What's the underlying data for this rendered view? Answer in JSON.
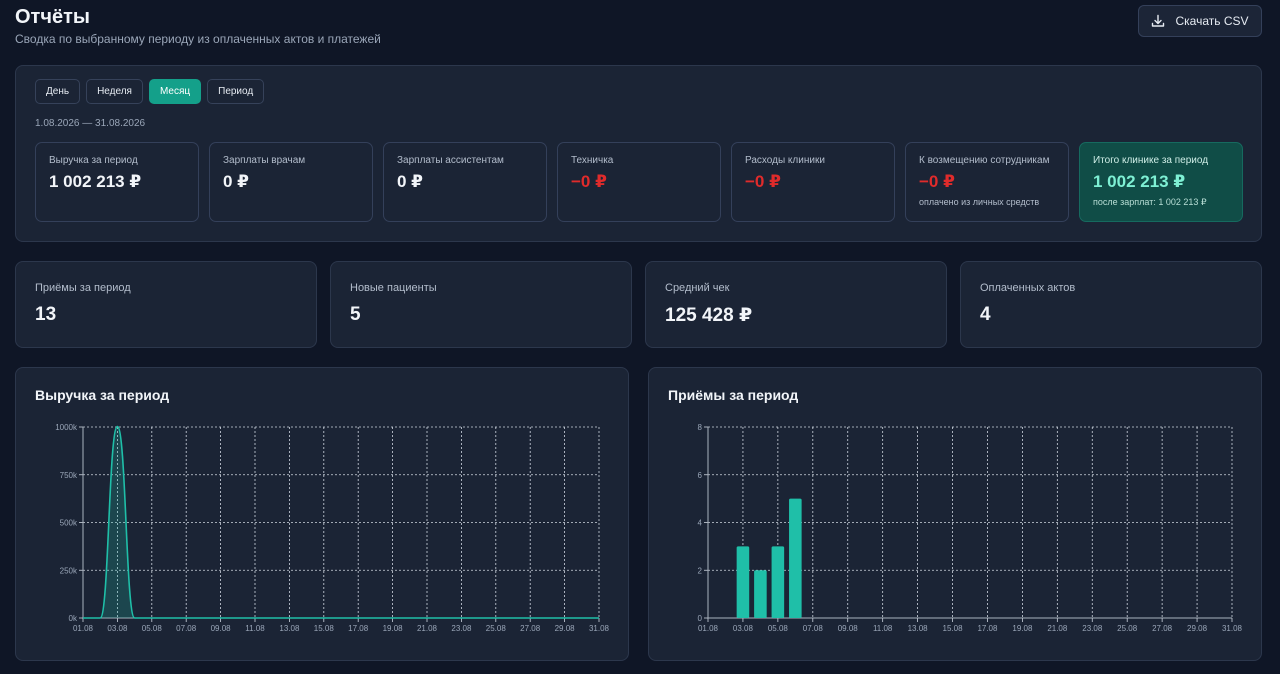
{
  "header": {
    "title": "Отчёты",
    "subtitle": "Сводка по выбранному периоду из оплаченных актов и платежей",
    "csv_label": "Скачать CSV"
  },
  "period_tabs": [
    {
      "label": "День",
      "active": false
    },
    {
      "label": "Неделя",
      "active": false
    },
    {
      "label": "Месяц",
      "active": true
    },
    {
      "label": "Период",
      "active": false
    }
  ],
  "date_range": "1.08.2026 — 31.08.2026",
  "summary": {
    "revenue": {
      "label": "Выручка за период",
      "value": "1 002 213 ₽"
    },
    "doctor_salaries": {
      "label": "Зарплаты врачам",
      "value": "0 ₽"
    },
    "assistant_salaries": {
      "label": "Зарплаты ассистентам",
      "value": "0 ₽"
    },
    "cleaner": {
      "label": "Техничка",
      "value": "−0 ₽"
    },
    "clinic_expenses": {
      "label": "Расходы клиники",
      "value": "−0 ₽"
    },
    "reimbursement": {
      "label": "К возмещению сотрудникам",
      "value": "−0 ₽",
      "note": "оплачено из личных средств"
    },
    "clinic_total": {
      "label": "Итого клинике за период",
      "value": "1 002 213 ₽",
      "note": "после зарплат: 1 002 213 ₽"
    }
  },
  "stats": {
    "appointments": {
      "label": "Приёмы за период",
      "value": "13"
    },
    "new_patients": {
      "label": "Новые пациенты",
      "value": "5"
    },
    "avg_check": {
      "label": "Средний чек",
      "value": "125 428 ₽"
    },
    "paid_acts": {
      "label": "Оплаченных актов",
      "value": "4"
    }
  },
  "colors": {
    "accent": "#14a08a",
    "series": "#1fbfa8",
    "negative": "#e02b2b",
    "total_card": "#104d47"
  },
  "chart_data": [
    {
      "type": "line",
      "title": "Выручка за период",
      "x": [
        "01.08",
        "02.08",
        "03.08",
        "04.08",
        "05.08",
        "06.08",
        "07.08",
        "08.08",
        "09.08",
        "10.08",
        "11.08",
        "12.08",
        "13.08",
        "14.08",
        "15.08",
        "16.08",
        "17.08",
        "18.08",
        "19.08",
        "20.08",
        "21.08",
        "22.08",
        "23.08",
        "24.08",
        "25.08",
        "26.08",
        "27.08",
        "28.08",
        "29.08",
        "30.08",
        "31.08"
      ],
      "x_tick_labels": [
        "01.08",
        "03.08",
        "05.08",
        "07.08",
        "09.08",
        "11.08",
        "13.08",
        "15.08",
        "17.08",
        "19.08",
        "21.08",
        "23.08",
        "25.08",
        "27.08",
        "29.08",
        "31.08"
      ],
      "values": [
        0,
        0,
        1002213,
        0,
        0,
        0,
        0,
        0,
        0,
        0,
        0,
        0,
        0,
        0,
        0,
        0,
        0,
        0,
        0,
        0,
        0,
        0,
        0,
        0,
        0,
        0,
        0,
        0,
        0,
        0,
        0
      ],
      "y_ticks": [
        "0k",
        "250k",
        "500k",
        "750k",
        "1000k"
      ],
      "ylim": [
        0,
        1000000
      ],
      "grid": true,
      "smooth": true
    },
    {
      "type": "bar",
      "title": "Приёмы за период",
      "x": [
        "01.08",
        "02.08",
        "03.08",
        "04.08",
        "05.08",
        "06.08",
        "07.08",
        "08.08",
        "09.08",
        "10.08",
        "11.08",
        "12.08",
        "13.08",
        "14.08",
        "15.08",
        "16.08",
        "17.08",
        "18.08",
        "19.08",
        "20.08",
        "21.08",
        "22.08",
        "23.08",
        "24.08",
        "25.08",
        "26.08",
        "27.08",
        "28.08",
        "29.08",
        "30.08",
        "31.08"
      ],
      "x_tick_labels": [
        "01.08",
        "03.08",
        "05.08",
        "07.08",
        "09.08",
        "11.08",
        "13.08",
        "15.08",
        "17.08",
        "19.08",
        "21.08",
        "23.08",
        "25.08",
        "27.08",
        "29.08",
        "31.08"
      ],
      "values": [
        0,
        0,
        3,
        2,
        3,
        5,
        0,
        0,
        0,
        0,
        0,
        0,
        0,
        0,
        0,
        0,
        0,
        0,
        0,
        0,
        0,
        0,
        0,
        0,
        0,
        0,
        0,
        0,
        0,
        0,
        0
      ],
      "y_ticks": [
        "0",
        "2",
        "4",
        "6",
        "8"
      ],
      "ylim": [
        0,
        8
      ],
      "grid": true
    }
  ]
}
